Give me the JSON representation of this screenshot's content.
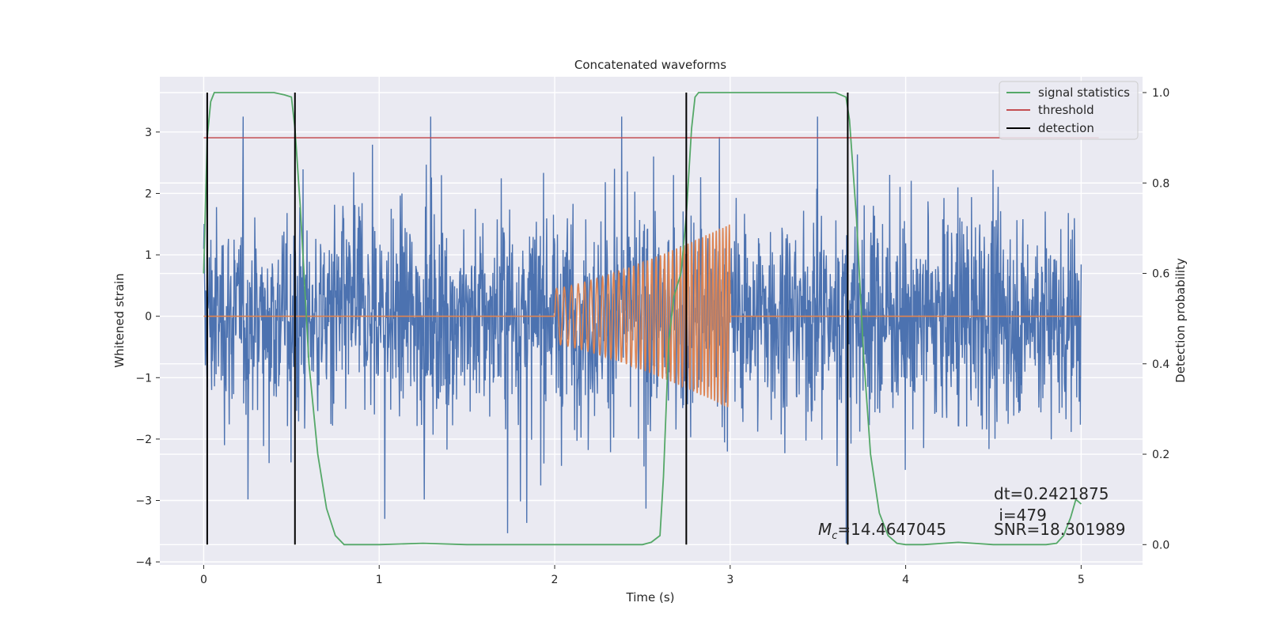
{
  "chart_data": {
    "type": "line",
    "title": "Concatenated waveforms",
    "xlabel": "Time (s)",
    "ylabel": "Whitened strain",
    "ylabel_right": "Detection probability",
    "xlim": [
      -0.25,
      5.35
    ],
    "ylim": [
      -4.05,
      3.9
    ],
    "ylim_right": [
      -0.045,
      1.035
    ],
    "xticks": [
      0,
      1,
      2,
      3,
      4,
      5
    ],
    "yticks": [
      -4,
      -3,
      -2,
      -1,
      0,
      1,
      2,
      3
    ],
    "yticks_right": [
      0.0,
      0.2,
      0.4,
      0.6,
      0.8,
      1.0
    ],
    "grid": true,
    "legend_position": "top-right",
    "legend": [
      {
        "label": "signal statistics",
        "color": "#55a868"
      },
      {
        "label": "threshold",
        "color": "#c44e52"
      },
      {
        "label": "detection",
        "color": "#000000"
      }
    ],
    "series": [
      {
        "name": "signal statistics",
        "axis": "right",
        "color": "#55a868",
        "x": [
          0,
          0.02,
          0.04,
          0.06,
          0.1,
          0.2,
          0.3,
          0.4,
          0.46,
          0.5,
          0.52,
          0.55,
          0.6,
          0.65,
          0.7,
          0.75,
          0.8,
          0.9,
          1.0,
          1.25,
          1.5,
          2.0,
          2.3,
          2.5,
          2.55,
          2.6,
          2.62,
          2.65,
          2.68,
          2.72,
          2.75,
          2.78,
          2.8,
          2.82,
          2.9,
          3.0,
          3.2,
          3.4,
          3.6,
          3.66,
          3.68,
          3.72,
          3.76,
          3.8,
          3.85,
          3.9,
          3.95,
          4.0,
          4.1,
          4.3,
          4.5,
          4.8,
          4.86,
          4.9,
          4.94,
          4.97,
          5.0
        ],
        "y": [
          0.6,
          0.9,
          0.98,
          1.0,
          1.0,
          1.0,
          1.0,
          1.0,
          0.995,
          0.99,
          0.92,
          0.75,
          0.4,
          0.2,
          0.08,
          0.02,
          0.0,
          0.0,
          0.0,
          0.003,
          0.0,
          0.0,
          0.0,
          0.0,
          0.005,
          0.02,
          0.15,
          0.45,
          0.55,
          0.6,
          0.73,
          0.92,
          0.99,
          1.0,
          1.0,
          1.0,
          1.0,
          1.0,
          1.0,
          0.99,
          0.94,
          0.72,
          0.42,
          0.2,
          0.07,
          0.02,
          0.003,
          0.0,
          0.0,
          0.005,
          0.0,
          0.0,
          0.003,
          0.02,
          0.06,
          0.1,
          0.09
        ]
      },
      {
        "name": "threshold",
        "axis": "right",
        "color": "#c44e52",
        "x": [
          0,
          5.1
        ],
        "y": [
          0.9,
          0.9
        ]
      },
      {
        "name": "detection",
        "axis": "right",
        "color": "#000000",
        "vlines_x": [
          0.02,
          0.52,
          2.75,
          3.67
        ],
        "ymin": 0.0,
        "ymax": 1.0
      },
      {
        "name": "",
        "axis": "left",
        "color": "#4c72b0",
        "kind": "noise",
        "x_range": [
          0,
          5
        ],
        "typical_amplitude": 1.5,
        "peak_range": [
          -3.7,
          3.25
        ]
      },
      {
        "name": "",
        "axis": "left",
        "color": "#dd8452",
        "kind": "chirp",
        "x_range": [
          2,
          3
        ],
        "start_amplitude": 0.45,
        "end_amplitude": 1.5,
        "start_frequency": 22,
        "end_frequency": 55
      }
    ],
    "annotations": [
      {
        "text": "dt=0.2421875",
        "x": 4.5,
        "y": -2.95
      },
      {
        "text": " i=479",
        "x": 4.5,
        "y": -3.3
      },
      {
        "text": "SNR=18.301989",
        "x": 4.5,
        "y": -3.5
      },
      {
        "text_math": "M",
        "subscript": "c",
        "text": "=14.4647045",
        "x": 3.5,
        "y": -3.5
      }
    ]
  }
}
